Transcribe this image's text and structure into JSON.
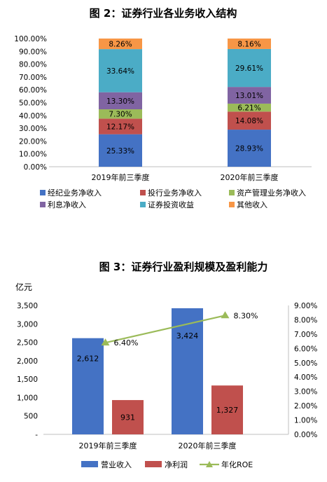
{
  "charts": [
    {
      "title": "图 2：证券行业各业务收入结构",
      "chart_data": {
        "type": "bar",
        "stacked": true,
        "categories": [
          "2019年前三季度",
          "2020年前三季度"
        ],
        "series": [
          {
            "name": "经纪业务净收入",
            "values": [
              25.33,
              28.93
            ],
            "color": "#4472c4",
            "labels": [
              "25.33%",
              "28.93%"
            ]
          },
          {
            "name": "投行业务净收入",
            "values": [
              12.17,
              14.08
            ],
            "color": "#c0504d",
            "labels": [
              "12.17%",
              "14.08%"
            ]
          },
          {
            "name": "资产管理业务净收入",
            "values": [
              7.3,
              6.21
            ],
            "color": "#9bbb59",
            "labels": [
              "7.30%",
              "6.21%"
            ]
          },
          {
            "name": "利息净收入",
            "values": [
              13.3,
              13.01
            ],
            "color": "#8064a2",
            "labels": [
              "13.30%",
              "13.01%"
            ]
          },
          {
            "name": "证券投资收益",
            "values": [
              33.64,
              29.61
            ],
            "color": "#4bacc6",
            "labels": [
              "33.64%",
              "29.61%"
            ]
          },
          {
            "name": "其他收入",
            "values": [
              8.26,
              8.16
            ],
            "color": "#f79646",
            "labels": [
              "8.26%",
              "8.16%"
            ]
          }
        ],
        "ylim": [
          0,
          100
        ],
        "yticks": [
          "0.00%",
          "10.00%",
          "20.00%",
          "30.00%",
          "40.00%",
          "50.00%",
          "60.00%",
          "70.00%",
          "80.00%",
          "90.00%",
          "100.00%"
        ],
        "legend": "bottom"
      }
    },
    {
      "title": "图 3：证券行业盈利规模及盈利能力",
      "chart_data": {
        "type": "bar",
        "categories": [
          "2019年前三季度",
          "2020年前三季度"
        ],
        "y_unit": "亿元",
        "series": [
          {
            "name": "营业收入",
            "type": "bar",
            "values": [
              2612,
              3424
            ],
            "labels": [
              "2,612",
              "3,424"
            ],
            "color": "#4472c4"
          },
          {
            "name": "净利润",
            "type": "bar",
            "values": [
              931,
              1327
            ],
            "labels": [
              "931",
              "1,327"
            ],
            "color": "#c0504d"
          },
          {
            "name": "年化ROE",
            "type": "line",
            "axis": "right",
            "values": [
              6.4,
              8.3
            ],
            "labels": [
              "6.40%",
              "8.30%"
            ],
            "color": "#9bbb59"
          }
        ],
        "ylim": [
          0,
          3500
        ],
        "yticks": [
          "-",
          "500",
          "1,000",
          "1,500",
          "2,000",
          "2,500",
          "3,000",
          "3,500"
        ],
        "y2lim": [
          0,
          9
        ],
        "y2ticks": [
          "0.00%",
          "1.00%",
          "2.00%",
          "3.00%",
          "4.00%",
          "5.00%",
          "6.00%",
          "7.00%",
          "8.00%",
          "9.00%"
        ],
        "legend": "bottom"
      }
    }
  ]
}
